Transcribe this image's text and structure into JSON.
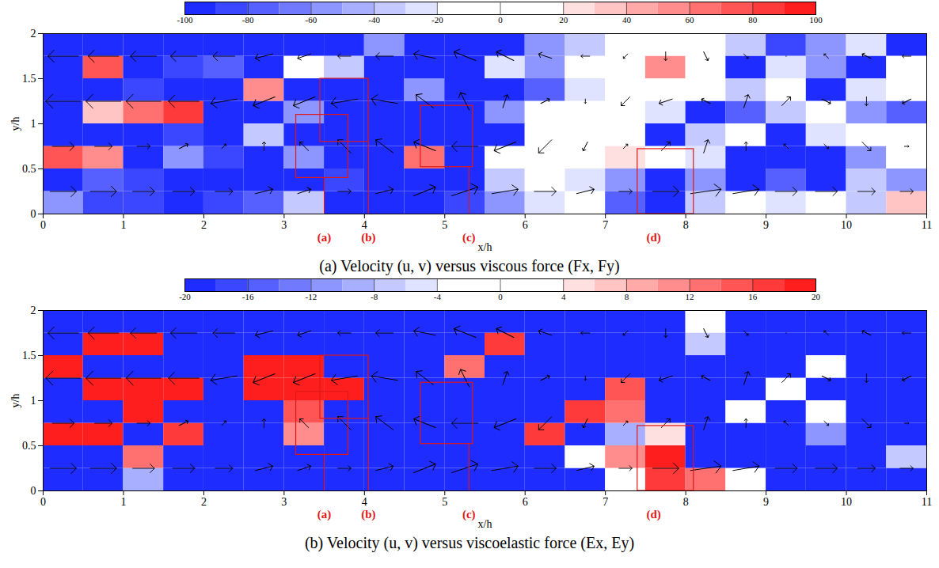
{
  "chart_data": [
    {
      "type": "heatmap",
      "title": "(a) Velocity (u, v) versus viscous force (Fx, Fy)",
      "x_label": "x/h",
      "y_label": "y/h",
      "xlim": [
        0,
        11
      ],
      "xticks": [
        0,
        1,
        2,
        3,
        4,
        5,
        6,
        7,
        8,
        9,
        10,
        11
      ],
      "ylim": [
        0,
        2
      ],
      "yticks": [
        0,
        0.5,
        1,
        1.5,
        2
      ],
      "colorbar": {
        "range": [
          -100,
          100
        ],
        "ticks": [
          -100,
          -80,
          -60,
          -40,
          -20,
          0,
          20,
          40,
          60,
          80,
          100
        ]
      },
      "cells": {
        "x": [
          0.25,
          0.75,
          1.25,
          1.75,
          2.25,
          2.75,
          3.25,
          3.75,
          4.25,
          4.75,
          5.25,
          5.75,
          6.25,
          6.75,
          7.25,
          7.75,
          8.25,
          8.75,
          9.25,
          9.75,
          10.25,
          10.75
        ],
        "y": [
          0.125,
          0.375,
          0.625,
          0.875,
          1.125,
          1.375,
          1.625,
          1.875
        ],
        "values": [
          [
            -60,
            -90,
            -90,
            -100,
            -90,
            -80,
            -40,
            -100,
            -100,
            -100,
            -90,
            -60,
            -30,
            -20,
            -80,
            -100,
            -40,
            -20,
            -30,
            -20,
            -40,
            30
          ],
          [
            -100,
            -80,
            -90,
            -100,
            -100,
            -100,
            -100,
            -90,
            -100,
            -100,
            -100,
            -40,
            -10,
            -30,
            -60,
            -100,
            -60,
            -100,
            -80,
            -100,
            -40,
            -60
          ],
          [
            70,
            50,
            -100,
            -60,
            -90,
            -100,
            -60,
            -100,
            -100,
            60,
            -100,
            0,
            10,
            0,
            20,
            -10,
            -30,
            -100,
            -100,
            -100,
            -60,
            -20
          ],
          [
            -100,
            -100,
            -100,
            -90,
            -100,
            -40,
            -100,
            -100,
            -100,
            -100,
            -100,
            -100,
            -20,
            0,
            -10,
            -100,
            -40,
            -20,
            -100,
            -30,
            -10,
            0
          ],
          [
            -100,
            30,
            60,
            80,
            -100,
            -100,
            -60,
            -100,
            -100,
            -100,
            -100,
            -60,
            -20,
            0,
            0,
            -30,
            -100,
            -80,
            -40,
            -20,
            -60,
            -80
          ],
          [
            -100,
            -100,
            -90,
            -100,
            -100,
            50,
            -100,
            -100,
            -100,
            -60,
            -100,
            -100,
            -80,
            -30,
            -10,
            -20,
            10,
            -40,
            -20,
            -100,
            -30,
            -20
          ],
          [
            -100,
            70,
            -100,
            -90,
            -80,
            -100,
            -20,
            -40,
            -100,
            -100,
            -100,
            -30,
            -60,
            -20,
            -20,
            50,
            -20,
            -100,
            -30,
            -60,
            -100,
            -20
          ],
          [
            -100,
            -100,
            -100,
            -100,
            -100,
            -100,
            -100,
            -100,
            -60,
            -100,
            -100,
            -100,
            -60,
            -40,
            -10,
            -10,
            0,
            -40,
            -90,
            -60,
            -30,
            -100
          ]
        ]
      },
      "vectors": {
        "x": [
          0.25,
          0.75,
          1.25,
          1.75,
          2.25,
          2.75,
          3.25,
          3.75,
          4.25,
          4.75,
          5.25,
          5.75,
          6.25,
          6.75,
          7.25,
          7.75,
          8.25,
          8.75,
          9.25,
          9.75,
          10.25,
          10.75
        ],
        "y": [
          0.25,
          0.75,
          1.25,
          1.75
        ],
        "u": [
          [
            0.6,
            0.6,
            0.5,
            0.5,
            0.4,
            0.4,
            0.3,
            0.3,
            0.4,
            0.5,
            0.6,
            0.6,
            0.5,
            0.4,
            0.3,
            0.6,
            0.7,
            0.6,
            0.5,
            0.5,
            0.4,
            0.3
          ],
          [
            0.5,
            0.4,
            0.3,
            0.2,
            0.1,
            0,
            -0.2,
            -0.3,
            -0.4,
            -0.5,
            -0.6,
            -0.5,
            -0.3,
            -0.1,
            0.1,
            0.2,
            0.1,
            0,
            -0.1,
            0.1,
            0.2,
            0.1
          ],
          [
            -0.8,
            -0.8,
            -0.8,
            -0.7,
            -0.6,
            -0.5,
            -0.5,
            -0.6,
            -0.6,
            -0.4,
            -0.2,
            0.1,
            0.2,
            0,
            -0.2,
            -0.3,
            -0.2,
            0.1,
            0.2,
            0.2,
            0,
            -0.2
          ],
          [
            -0.7,
            -0.7,
            -0.6,
            -0.6,
            -0.5,
            -0.4,
            -0.3,
            -0.3,
            -0.4,
            -0.5,
            -0.5,
            -0.4,
            -0.3,
            -0.2,
            -0.1,
            0,
            0.1,
            0.1,
            0,
            -0.1,
            -0.2,
            -0.2
          ]
        ],
        "v": [
          [
            0,
            0,
            0,
            0,
            0,
            0.1,
            0.1,
            0,
            0.1,
            0.2,
            0.2,
            0.1,
            0,
            0.1,
            0,
            0,
            0.1,
            0.1,
            0,
            0,
            0,
            0
          ],
          [
            0,
            0,
            0,
            0.1,
            0.1,
            0.2,
            0.2,
            0.3,
            0.3,
            0.2,
            0,
            -0.2,
            -0.3,
            -0.2,
            0.1,
            0.2,
            0.3,
            0.2,
            0.1,
            -0.1,
            -0.2,
            0
          ],
          [
            0,
            0,
            0,
            0,
            -0.1,
            -0.2,
            -0.2,
            -0.1,
            0.1,
            0.3,
            0.4,
            0.3,
            0.1,
            -0.1,
            -0.2,
            -0.1,
            0.1,
            0.3,
            0.2,
            -0.1,
            -0.2,
            -0.1
          ],
          [
            0,
            0,
            0,
            0,
            0,
            -0.1,
            -0.1,
            0,
            0,
            0.1,
            0.2,
            0.2,
            0.1,
            0,
            -0.1,
            -0.2,
            -0.2,
            -0.1,
            0,
            0.1,
            0.1,
            0
          ]
        ]
      },
      "regions": [
        {
          "label": "(a)",
          "label_x": 3.5,
          "x": [
            3.15,
            3.8
          ],
          "y": [
            0.4,
            1.1
          ]
        },
        {
          "label": "(b)",
          "label_x": 4.05,
          "x": [
            3.45,
            4.05
          ],
          "y": [
            0.8,
            1.5
          ]
        },
        {
          "label": "(c)",
          "label_x": 5.3,
          "x": [
            4.7,
            5.35
          ],
          "y": [
            0.52,
            1.2
          ]
        },
        {
          "label": "(d)",
          "label_x": 7.6,
          "x": [
            7.4,
            8.1
          ],
          "y": [
            0,
            0.72
          ]
        }
      ]
    },
    {
      "type": "heatmap",
      "title": "(b) Velocity (u, v) versus viscoelastic force (Ex, Ey)",
      "x_label": "x/h",
      "y_label": "y/h",
      "xlim": [
        0,
        11
      ],
      "xticks": [
        0,
        1,
        2,
        3,
        4,
        5,
        6,
        7,
        8,
        9,
        10,
        11
      ],
      "ylim": [
        0,
        2
      ],
      "yticks": [
        0,
        0.5,
        1,
        1.5,
        2
      ],
      "colorbar": {
        "range": [
          -20,
          20
        ],
        "ticks": [
          -20,
          -16,
          -12,
          -8,
          -4,
          0,
          4,
          8,
          12,
          16,
          20
        ]
      },
      "cells": {
        "x": [
          0.25,
          0.75,
          1.25,
          1.75,
          2.25,
          2.75,
          3.25,
          3.75,
          4.25,
          4.75,
          5.25,
          5.75,
          6.25,
          6.75,
          7.25,
          7.75,
          8.25,
          8.75,
          9.25,
          9.75,
          10.25,
          10.75
        ],
        "y": [
          0.125,
          0.375,
          0.625,
          0.875,
          1.125,
          1.375,
          1.625,
          1.875
        ],
        "values": [
          [
            -20,
            -20,
            -10,
            -20,
            -20,
            -20,
            -20,
            -20,
            -20,
            -20,
            -20,
            -20,
            -20,
            -20,
            0,
            16,
            12,
            -4,
            -20,
            -20,
            -20,
            -20
          ],
          [
            -20,
            -20,
            12,
            -20,
            -20,
            -20,
            -20,
            -20,
            -20,
            -20,
            -20,
            -20,
            -20,
            0,
            10,
            20,
            -20,
            -20,
            -20,
            -20,
            -20,
            -8
          ],
          [
            20,
            20,
            -20,
            16,
            -20,
            -20,
            10,
            -20,
            -20,
            -20,
            -20,
            -20,
            16,
            -20,
            -10,
            4,
            -20,
            -20,
            -20,
            -12,
            -20,
            -20
          ],
          [
            -20,
            -20,
            20,
            -20,
            -20,
            -20,
            14,
            -20,
            -20,
            -20,
            -20,
            -20,
            -20,
            16,
            12,
            -20,
            -20,
            -4,
            -20,
            0,
            -20,
            -20
          ],
          [
            -20,
            20,
            20,
            20,
            -20,
            20,
            20,
            20,
            -20,
            -20,
            -20,
            -20,
            -20,
            -20,
            14,
            -20,
            -20,
            -20,
            0,
            -20,
            -20,
            -20
          ],
          [
            20,
            -20,
            -20,
            -20,
            -20,
            20,
            20,
            -20,
            -20,
            -20,
            12,
            -20,
            -20,
            -20,
            -20,
            -20,
            -20,
            -20,
            -20,
            -4,
            -20,
            -20
          ],
          [
            -20,
            20,
            20,
            -20,
            -20,
            -20,
            -20,
            -20,
            -20,
            -20,
            -20,
            16,
            -20,
            -20,
            -20,
            -20,
            -8,
            -20,
            -20,
            -20,
            -20,
            -20
          ],
          [
            -20,
            -20,
            -20,
            -20,
            -20,
            -20,
            -20,
            -20,
            -20,
            -20,
            -20,
            -20,
            -20,
            -20,
            -20,
            -20,
            -4,
            -20,
            -20,
            -20,
            -20,
            -20
          ]
        ]
      },
      "vectors": {
        "x": [
          0.25,
          0.75,
          1.25,
          1.75,
          2.25,
          2.75,
          3.25,
          3.75,
          4.25,
          4.75,
          5.25,
          5.75,
          6.25,
          6.75,
          7.25,
          7.75,
          8.25,
          8.75,
          9.25,
          9.75,
          10.25,
          10.75
        ],
        "y": [
          0.25,
          0.75,
          1.25,
          1.75
        ],
        "u": [
          [
            0.6,
            0.6,
            0.5,
            0.5,
            0.4,
            0.4,
            0.3,
            0.3,
            0.4,
            0.5,
            0.6,
            0.6,
            0.5,
            0.4,
            0.3,
            0.6,
            0.7,
            0.6,
            0.5,
            0.5,
            0.4,
            0.3
          ],
          [
            0.5,
            0.4,
            0.3,
            0.2,
            0.1,
            0,
            -0.2,
            -0.3,
            -0.4,
            -0.5,
            -0.6,
            -0.5,
            -0.3,
            -0.1,
            0.1,
            0.2,
            0.1,
            0,
            -0.1,
            0.1,
            0.2,
            0.1
          ],
          [
            -0.8,
            -0.8,
            -0.8,
            -0.7,
            -0.6,
            -0.5,
            -0.5,
            -0.6,
            -0.6,
            -0.4,
            -0.2,
            0.1,
            0.2,
            0,
            -0.2,
            -0.3,
            -0.2,
            0.1,
            0.2,
            0.2,
            0,
            -0.2
          ],
          [
            -0.7,
            -0.7,
            -0.6,
            -0.6,
            -0.5,
            -0.4,
            -0.3,
            -0.3,
            -0.4,
            -0.5,
            -0.5,
            -0.4,
            -0.3,
            -0.2,
            -0.1,
            0,
            0.1,
            0.1,
            0,
            -0.1,
            -0.2,
            -0.2
          ]
        ],
        "v": [
          [
            0,
            0,
            0,
            0,
            0,
            0.1,
            0.1,
            0,
            0.1,
            0.2,
            0.2,
            0.1,
            0,
            0.1,
            0,
            0,
            0.1,
            0.1,
            0,
            0,
            0,
            0
          ],
          [
            0,
            0,
            0,
            0.1,
            0.1,
            0.2,
            0.2,
            0.3,
            0.3,
            0.2,
            0,
            -0.2,
            -0.3,
            -0.2,
            0.1,
            0.2,
            0.3,
            0.2,
            0.1,
            -0.1,
            -0.2,
            0
          ],
          [
            0,
            0,
            0,
            0,
            -0.1,
            -0.2,
            -0.2,
            -0.1,
            0.1,
            0.3,
            0.4,
            0.3,
            0.1,
            -0.1,
            -0.2,
            -0.1,
            0.1,
            0.3,
            0.2,
            -0.1,
            -0.2,
            -0.1
          ],
          [
            0,
            0,
            0,
            0,
            0,
            -0.1,
            -0.1,
            0,
            0,
            0.1,
            0.2,
            0.2,
            0.1,
            0,
            -0.1,
            -0.2,
            -0.2,
            -0.1,
            0,
            0.1,
            0.1,
            0
          ]
        ]
      },
      "regions": [
        {
          "label": "(a)",
          "label_x": 3.5,
          "x": [
            3.15,
            3.8
          ],
          "y": [
            0.4,
            1.1
          ]
        },
        {
          "label": "(b)",
          "label_x": 4.05,
          "x": [
            3.45,
            4.05
          ],
          "y": [
            0.8,
            1.5
          ]
        },
        {
          "label": "(c)",
          "label_x": 5.3,
          "x": [
            4.7,
            5.35
          ],
          "y": [
            0.52,
            1.2
          ]
        },
        {
          "label": "(d)",
          "label_x": 7.6,
          "x": [
            7.4,
            8.1
          ],
          "y": [
            0,
            0.72
          ]
        }
      ]
    }
  ]
}
